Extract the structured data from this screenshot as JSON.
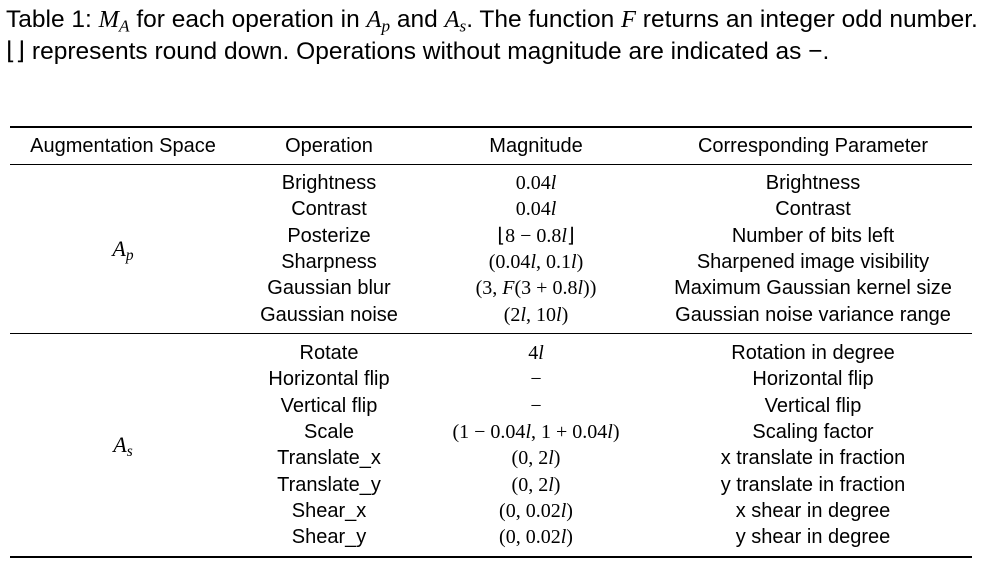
{
  "caption": {
    "p1": "Table 1: ",
    "m1": "M",
    "m1_sub": "A",
    "p2": " for each operation in ",
    "m2": "A",
    "m2_sub": "p",
    "p3": " and ",
    "m3": "A",
    "m3_sub": "s",
    "p4": ". The function ",
    "m4": "F",
    "p5": " returns an integer odd number. ⌊⌋ represents round down. Operations without magnitude are indicated as −."
  },
  "table": {
    "headers": [
      "Augmentation Space",
      "Operation",
      "Magnitude",
      "Corresponding Parameter"
    ],
    "groups": [
      {
        "name": "A",
        "sub": "p",
        "rows": [
          {
            "op": "Brightness",
            "mag": "0.04l",
            "param": "Brightness"
          },
          {
            "op": "Contrast",
            "mag": "0.04l",
            "param": "Contrast"
          },
          {
            "op": "Posterize",
            "mag": "⌊8 − 0.8l⌋",
            "param": "Number of bits left"
          },
          {
            "op": "Sharpness",
            "mag": "(0.04l, 0.1l)",
            "param": "Sharpened image visibility"
          },
          {
            "op": "Gaussian blur",
            "mag": "(3, F(3 + 0.8l))",
            "param": "Maximum Gaussian kernel size"
          },
          {
            "op": "Gaussian noise",
            "mag": "(2l, 10l)",
            "param": "Gaussian noise variance range"
          }
        ]
      },
      {
        "name": "A",
        "sub": "s",
        "rows": [
          {
            "op": "Rotate",
            "mag": "4l",
            "param": "Rotation in degree"
          },
          {
            "op": "Horizontal flip",
            "mag": "−",
            "param": "Horizontal flip"
          },
          {
            "op": "Vertical flip",
            "mag": "−",
            "param": "Vertical flip"
          },
          {
            "op": "Scale",
            "mag": "(1 − 0.04l, 1 + 0.04l)",
            "param": "Scaling factor"
          },
          {
            "op": "Translate_x",
            "mag": "(0, 2l)",
            "param": "x translate in fraction"
          },
          {
            "op": "Translate_y",
            "mag": "(0, 2l)",
            "param": "y translate in fraction"
          },
          {
            "op": "Shear_x",
            "mag": "(0, 0.02l)",
            "param": "x shear in degree"
          },
          {
            "op": "Shear_y",
            "mag": "(0, 0.02l)",
            "param": "y shear in degree"
          }
        ]
      }
    ]
  }
}
